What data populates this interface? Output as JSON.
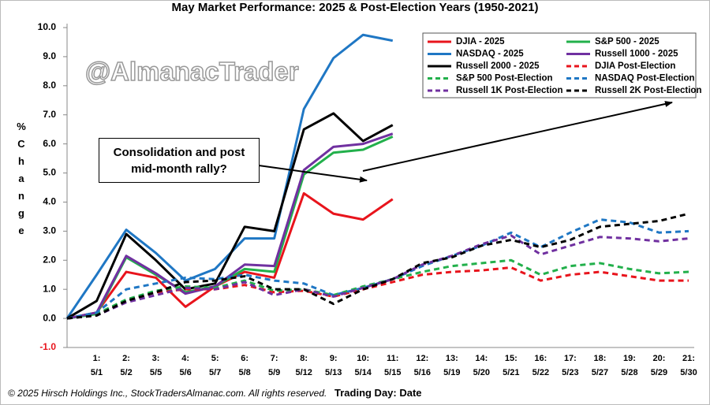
{
  "chart_data": {
    "type": "line",
    "title": "May Market Performance: 2025 & Post-Election Years (1950-2021)",
    "watermark": "@AlmanacTrader",
    "ylabel": "% Change",
    "xlabel": "Trading Day: Date",
    "footer": "© 2025 Hirsch Holdings Inc., StockTradersAlmanac.com. All rights reserved.",
    "annotation": "Consolidation and post\nmid-month rally?",
    "categories": [
      null,
      "1:\n5/1",
      "2:\n5/2",
      "3:\n5/5",
      "4:\n5/6",
      "5:\n5/7",
      "6:\n5/8",
      "7:\n5/9",
      "8:\n5/12",
      "9:\n5/13",
      "10:\n5/14",
      "11:\n5/15",
      "12:\n5/16",
      "13:\n5/19",
      "14:\n5/20",
      "15:\n5/21",
      "16:\n5/22",
      "17:\n5/23",
      "18:\n5/27",
      "19:\n5/28",
      "20:\n5/29",
      "21:\n5/30"
    ],
    "ylim": [
      -1,
      10
    ],
    "yticks": [
      {
        "value": -1,
        "label": "-1.0"
      },
      {
        "value": 0,
        "label": "0.0"
      },
      {
        "value": 1,
        "label": "1.0"
      },
      {
        "value": 2,
        "label": "2.0"
      },
      {
        "value": 3,
        "label": "3.0"
      },
      {
        "value": 4,
        "label": "4.0"
      },
      {
        "value": 5,
        "label": "5.0"
      },
      {
        "value": 6,
        "label": "6.0"
      },
      {
        "value": 7,
        "label": "7.0"
      },
      {
        "value": 8,
        "label": "8.0"
      },
      {
        "value": 9,
        "label": "9.0"
      },
      {
        "value": 10,
        "label": "10.0"
      }
    ],
    "grid": false,
    "legend": "top-right",
    "series": [
      {
        "name": "DJIA - 2025",
        "color": "#e8141c",
        "dashed": false,
        "values": [
          0,
          0.2,
          1.6,
          1.4,
          0.4,
          1.1,
          1.6,
          1.4,
          4.3,
          3.6,
          3.4,
          4.1,
          null,
          null,
          null,
          null,
          null,
          null,
          null,
          null,
          null,
          null
        ]
      },
      {
        "name": "S&P 500 - 2025",
        "color": "#22b04b",
        "dashed": false,
        "values": [
          0,
          0.15,
          2.1,
          1.5,
          0.9,
          1.1,
          1.7,
          1.6,
          4.95,
          5.7,
          5.8,
          6.25,
          null,
          null,
          null,
          null,
          null,
          null,
          null,
          null,
          null,
          null
        ]
      },
      {
        "name": "NASDAQ - 2025",
        "color": "#1f77c4",
        "dashed": false,
        "values": [
          0,
          1.5,
          3.05,
          2.25,
          1.3,
          1.7,
          2.75,
          2.75,
          7.2,
          8.95,
          9.75,
          9.55,
          null,
          null,
          null,
          null,
          null,
          null,
          null,
          null,
          null,
          null
        ]
      },
      {
        "name": "Russell 1000 - 2025",
        "color": "#7030a0",
        "dashed": false,
        "values": [
          0,
          0.2,
          2.15,
          1.55,
          0.85,
          1.1,
          1.85,
          1.8,
          5.1,
          5.9,
          6.0,
          6.35,
          null,
          null,
          null,
          null,
          null,
          null,
          null,
          null,
          null,
          null
        ]
      },
      {
        "name": "Russell 2000 - 2025",
        "color": "#000000",
        "dashed": false,
        "values": [
          0,
          0.6,
          2.9,
          2.0,
          1.0,
          1.2,
          3.15,
          3.0,
          6.5,
          7.05,
          6.1,
          6.65,
          null,
          null,
          null,
          null,
          null,
          null,
          null,
          null,
          null,
          null
        ]
      },
      {
        "name": "DJIA Post-Election",
        "color": "#e8141c",
        "dashed": true,
        "values": [
          0,
          0.1,
          0.6,
          0.9,
          1.0,
          1.0,
          1.15,
          0.9,
          0.95,
          0.75,
          1.0,
          1.25,
          1.5,
          1.6,
          1.65,
          1.75,
          1.3,
          1.5,
          1.6,
          1.45,
          1.3,
          1.3
        ]
      },
      {
        "name": "S&P 500 Post-Election",
        "color": "#22b04b",
        "dashed": true,
        "values": [
          0,
          0.15,
          0.65,
          0.95,
          1.1,
          1.05,
          1.3,
          0.95,
          1.0,
          0.8,
          1.1,
          1.35,
          1.6,
          1.8,
          1.9,
          2.0,
          1.5,
          1.8,
          1.9,
          1.7,
          1.55,
          1.6
        ]
      },
      {
        "name": "NASDAQ Post-Election",
        "color": "#1f77c4",
        "dashed": true,
        "values": [
          0,
          0.2,
          1.0,
          1.2,
          1.4,
          1.35,
          1.5,
          1.3,
          1.2,
          0.8,
          1.05,
          1.35,
          1.8,
          2.15,
          2.5,
          2.95,
          2.45,
          2.95,
          3.4,
          3.3,
          2.95,
          3.0
        ]
      },
      {
        "name": "Russell 1K Post-Election",
        "color": "#7030a0",
        "dashed": true,
        "values": [
          0,
          0.1,
          0.55,
          0.8,
          1.05,
          1.0,
          1.25,
          0.8,
          1.0,
          0.75,
          1.05,
          1.35,
          1.85,
          2.15,
          2.55,
          2.85,
          2.2,
          2.5,
          2.8,
          2.75,
          2.65,
          2.75
        ]
      },
      {
        "name": "Russell 2K Post-Election",
        "color": "#000000",
        "dashed": true,
        "values": [
          0,
          0.1,
          0.6,
          0.9,
          1.25,
          1.3,
          1.45,
          1.0,
          1.0,
          0.5,
          1.0,
          1.35,
          1.9,
          2.1,
          2.5,
          2.7,
          2.45,
          2.7,
          3.15,
          3.25,
          3.35,
          3.6
        ]
      }
    ]
  }
}
